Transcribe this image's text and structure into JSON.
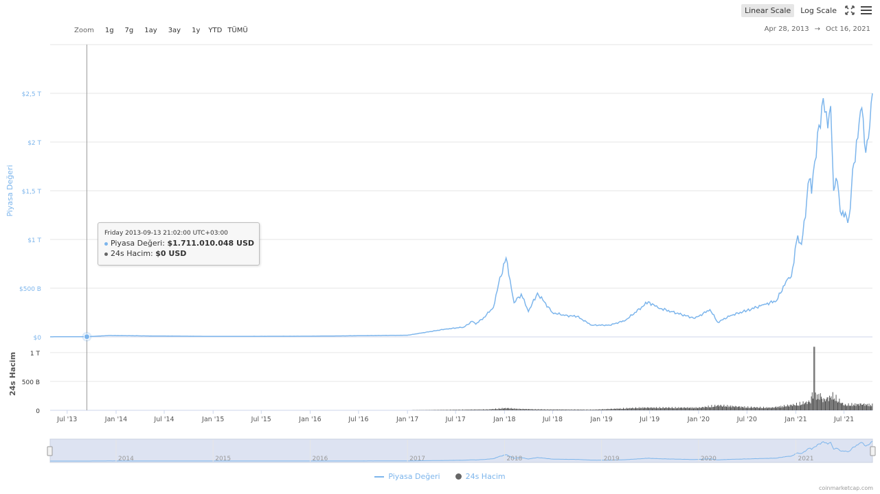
{
  "toolbar": {
    "linear_label": "Linear Scale",
    "log_label": "Log Scale",
    "fullscreen_icon": "expand-icon",
    "menu_icon": "hamburger-menu-icon"
  },
  "zoom": {
    "label": "Zoom",
    "buttons": [
      "1g",
      "7g",
      "1ay",
      "3ay",
      "1y",
      "YTD",
      "TÜMÜ"
    ]
  },
  "date_range": {
    "from": "Apr 28, 2013",
    "arrow": "→",
    "to": "Oct 16, 2021"
  },
  "tooltip": {
    "date": "Friday 2013-09-13 21:02:00 UTC+03:00",
    "line1_label": "Piyasa Değeri:",
    "line1_value": "$1.711.010.048 USD",
    "line2_label": "24s Hacim:",
    "line2_value": "$0 USD"
  },
  "legend": {
    "series1": "Piyasa Değeri",
    "series2": "24s Hacim"
  },
  "credit": "coinmarketcap.com",
  "colors": {
    "market_cap": "#7cb5ec",
    "volume": "#555555",
    "navigator_bg": "#dde3f2"
  },
  "chart_data": {
    "type": "line",
    "title": "",
    "x_range": [
      "2013-04-28",
      "2021-10-16"
    ],
    "x_ticks": [
      "Jul '13",
      "Jan '14",
      "Jul '14",
      "Jan '15",
      "Jul '15",
      "Jan '16",
      "Jul '16",
      "Jan '17",
      "Jul '17",
      "Jan '18",
      "Jul '18",
      "Jan '19",
      "Jul '19",
      "Jan '20",
      "Jul '20",
      "Jan '21",
      "Jul '21"
    ],
    "navigator_ticks": [
      "2014",
      "2015",
      "2016",
      "2017",
      "2018",
      "2019",
      "2020",
      "2021"
    ],
    "y_axis_main": {
      "label": "Piyasa Değeri",
      "range": [
        0,
        3.0
      ],
      "unit": "T USD",
      "ticks": [
        {
          "v": 0,
          "label": "$0"
        },
        {
          "v": 0.5,
          "label": "$500 B"
        },
        {
          "v": 1,
          "label": "$1 T"
        },
        {
          "v": 1.5,
          "label": "$1,5 T"
        },
        {
          "v": 2,
          "label": "$2 T"
        },
        {
          "v": 2.5,
          "label": "$2,5 T"
        }
      ]
    },
    "y_axis_volume": {
      "label": "24s Hacim",
      "range": [
        0,
        1.2
      ],
      "unit": "T USD",
      "ticks": [
        {
          "v": 0,
          "label": "0"
        },
        {
          "v": 0.5,
          "label": "500 B"
        },
        {
          "v": 1,
          "label": "1 T"
        }
      ]
    },
    "series": [
      {
        "name": "Piyasa Değeri",
        "dates": [
          "2013-04-28",
          "2013-09-13",
          "2013-12-04",
          "2014-06-01",
          "2015-01-15",
          "2016-01-01",
          "2016-07-01",
          "2017-01-01",
          "2017-05-25",
          "2017-08-01",
          "2017-09-01",
          "2017-09-15",
          "2017-10-15",
          "2017-11-20",
          "2017-12-10",
          "2018-01-07",
          "2018-02-06",
          "2018-03-05",
          "2018-04-01",
          "2018-05-05",
          "2018-06-30",
          "2018-08-15",
          "2018-10-01",
          "2018-11-25",
          "2019-02-01",
          "2019-04-01",
          "2019-06-26",
          "2019-08-01",
          "2019-09-20",
          "2019-12-18",
          "2020-02-13",
          "2020-03-13",
          "2020-05-01",
          "2020-07-01",
          "2020-09-01",
          "2020-10-20",
          "2020-11-25",
          "2020-12-15",
          "2021-01-08",
          "2021-01-22",
          "2021-02-21",
          "2021-03-01",
          "2021-03-13",
          "2021-04-14",
          "2021-05-01",
          "2021-05-12",
          "2021-05-23",
          "2021-06-01",
          "2021-06-22",
          "2021-07-20",
          "2021-08-07",
          "2021-09-06",
          "2021-09-21",
          "2021-10-01",
          "2021-10-16"
        ],
        "values": [
          0.001,
          0.0017,
          0.014,
          0.009,
          0.005,
          0.007,
          0.012,
          0.017,
          0.08,
          0.1,
          0.16,
          0.13,
          0.2,
          0.3,
          0.55,
          0.81,
          0.35,
          0.44,
          0.26,
          0.45,
          0.25,
          0.22,
          0.21,
          0.12,
          0.12,
          0.17,
          0.36,
          0.3,
          0.26,
          0.19,
          0.28,
          0.15,
          0.22,
          0.27,
          0.33,
          0.37,
          0.57,
          0.62,
          1.04,
          0.95,
          1.62,
          1.47,
          1.8,
          2.45,
          2.14,
          2.37,
          1.5,
          1.63,
          1.25,
          1.23,
          1.78,
          2.35,
          1.89,
          2.04,
          2.5
        ]
      },
      {
        "name": "24s Hacim",
        "dates": [
          "2013-04-28",
          "2017-01-01",
          "2017-11-01",
          "2018-01-05",
          "2018-03-01",
          "2018-06-01",
          "2018-12-01",
          "2019-06-01",
          "2020-01-01",
          "2020-03-15",
          "2020-07-01",
          "2020-10-01",
          "2021-01-10",
          "2021-02-25",
          "2021-03-10",
          "2021-04-10",
          "2021-05-19",
          "2021-07-01",
          "2021-09-01",
          "2021-10-16"
        ],
        "values": [
          0,
          0.002,
          0.02,
          0.05,
          0.03,
          0.02,
          0.015,
          0.06,
          0.06,
          0.11,
          0.07,
          0.06,
          0.14,
          0.2,
          1.1,
          0.22,
          0.33,
          0.12,
          0.14,
          0.12
        ]
      }
    ],
    "crosshair_date": "2013-09-13",
    "grid": true,
    "legend_position": "bottom-center"
  }
}
